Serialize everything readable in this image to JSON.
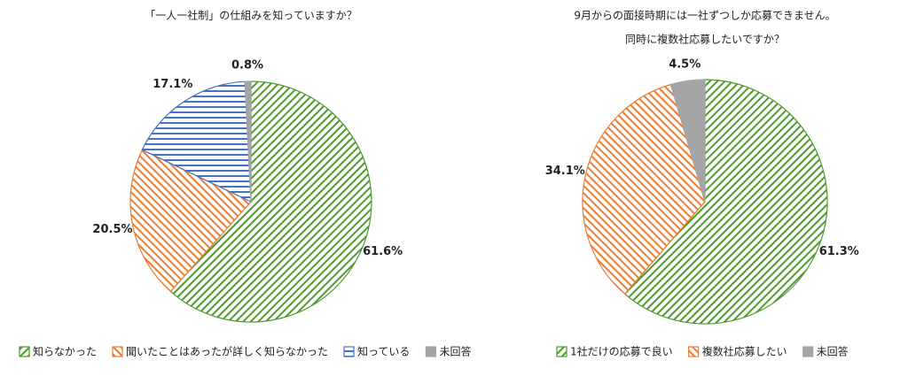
{
  "chart_data": [
    {
      "type": "pie",
      "title": "「一人一社制」の仕組みを知っていますか？",
      "categories": [
        "知らなかった",
        "聞いたことはあったが詳しく知らなかった",
        "知っている",
        "未回答"
      ],
      "values": [
        61.6,
        20.5,
        17.1,
        0.8
      ],
      "value_labels": [
        "61.6%",
        "20.5%",
        "17.1%",
        "0.8%"
      ],
      "colors": [
        "#4e9a2e",
        "#ed7d31",
        "#4472c4",
        "#a5a5a5"
      ],
      "patterns": [
        "diagonal",
        "back-diagonal",
        "horizontal",
        "solid"
      ],
      "legend": "bottom"
    },
    {
      "type": "pie",
      "title": [
        "9月からの面接時期には一社ずつしか応募できません。",
        "同時に複数社応募したいですか？"
      ],
      "categories": [
        "1社だけの応募で良い",
        "複数社応募したい",
        "未回答"
      ],
      "values": [
        61.3,
        34.1,
        4.5
      ],
      "value_labels": [
        "61.3%",
        "34.1%",
        "4.5%"
      ],
      "colors": [
        "#4e9a2e",
        "#ed7d31",
        "#a5a5a5"
      ],
      "patterns": [
        "diagonal",
        "back-diagonal",
        "solid"
      ],
      "legend": "bottom"
    }
  ]
}
